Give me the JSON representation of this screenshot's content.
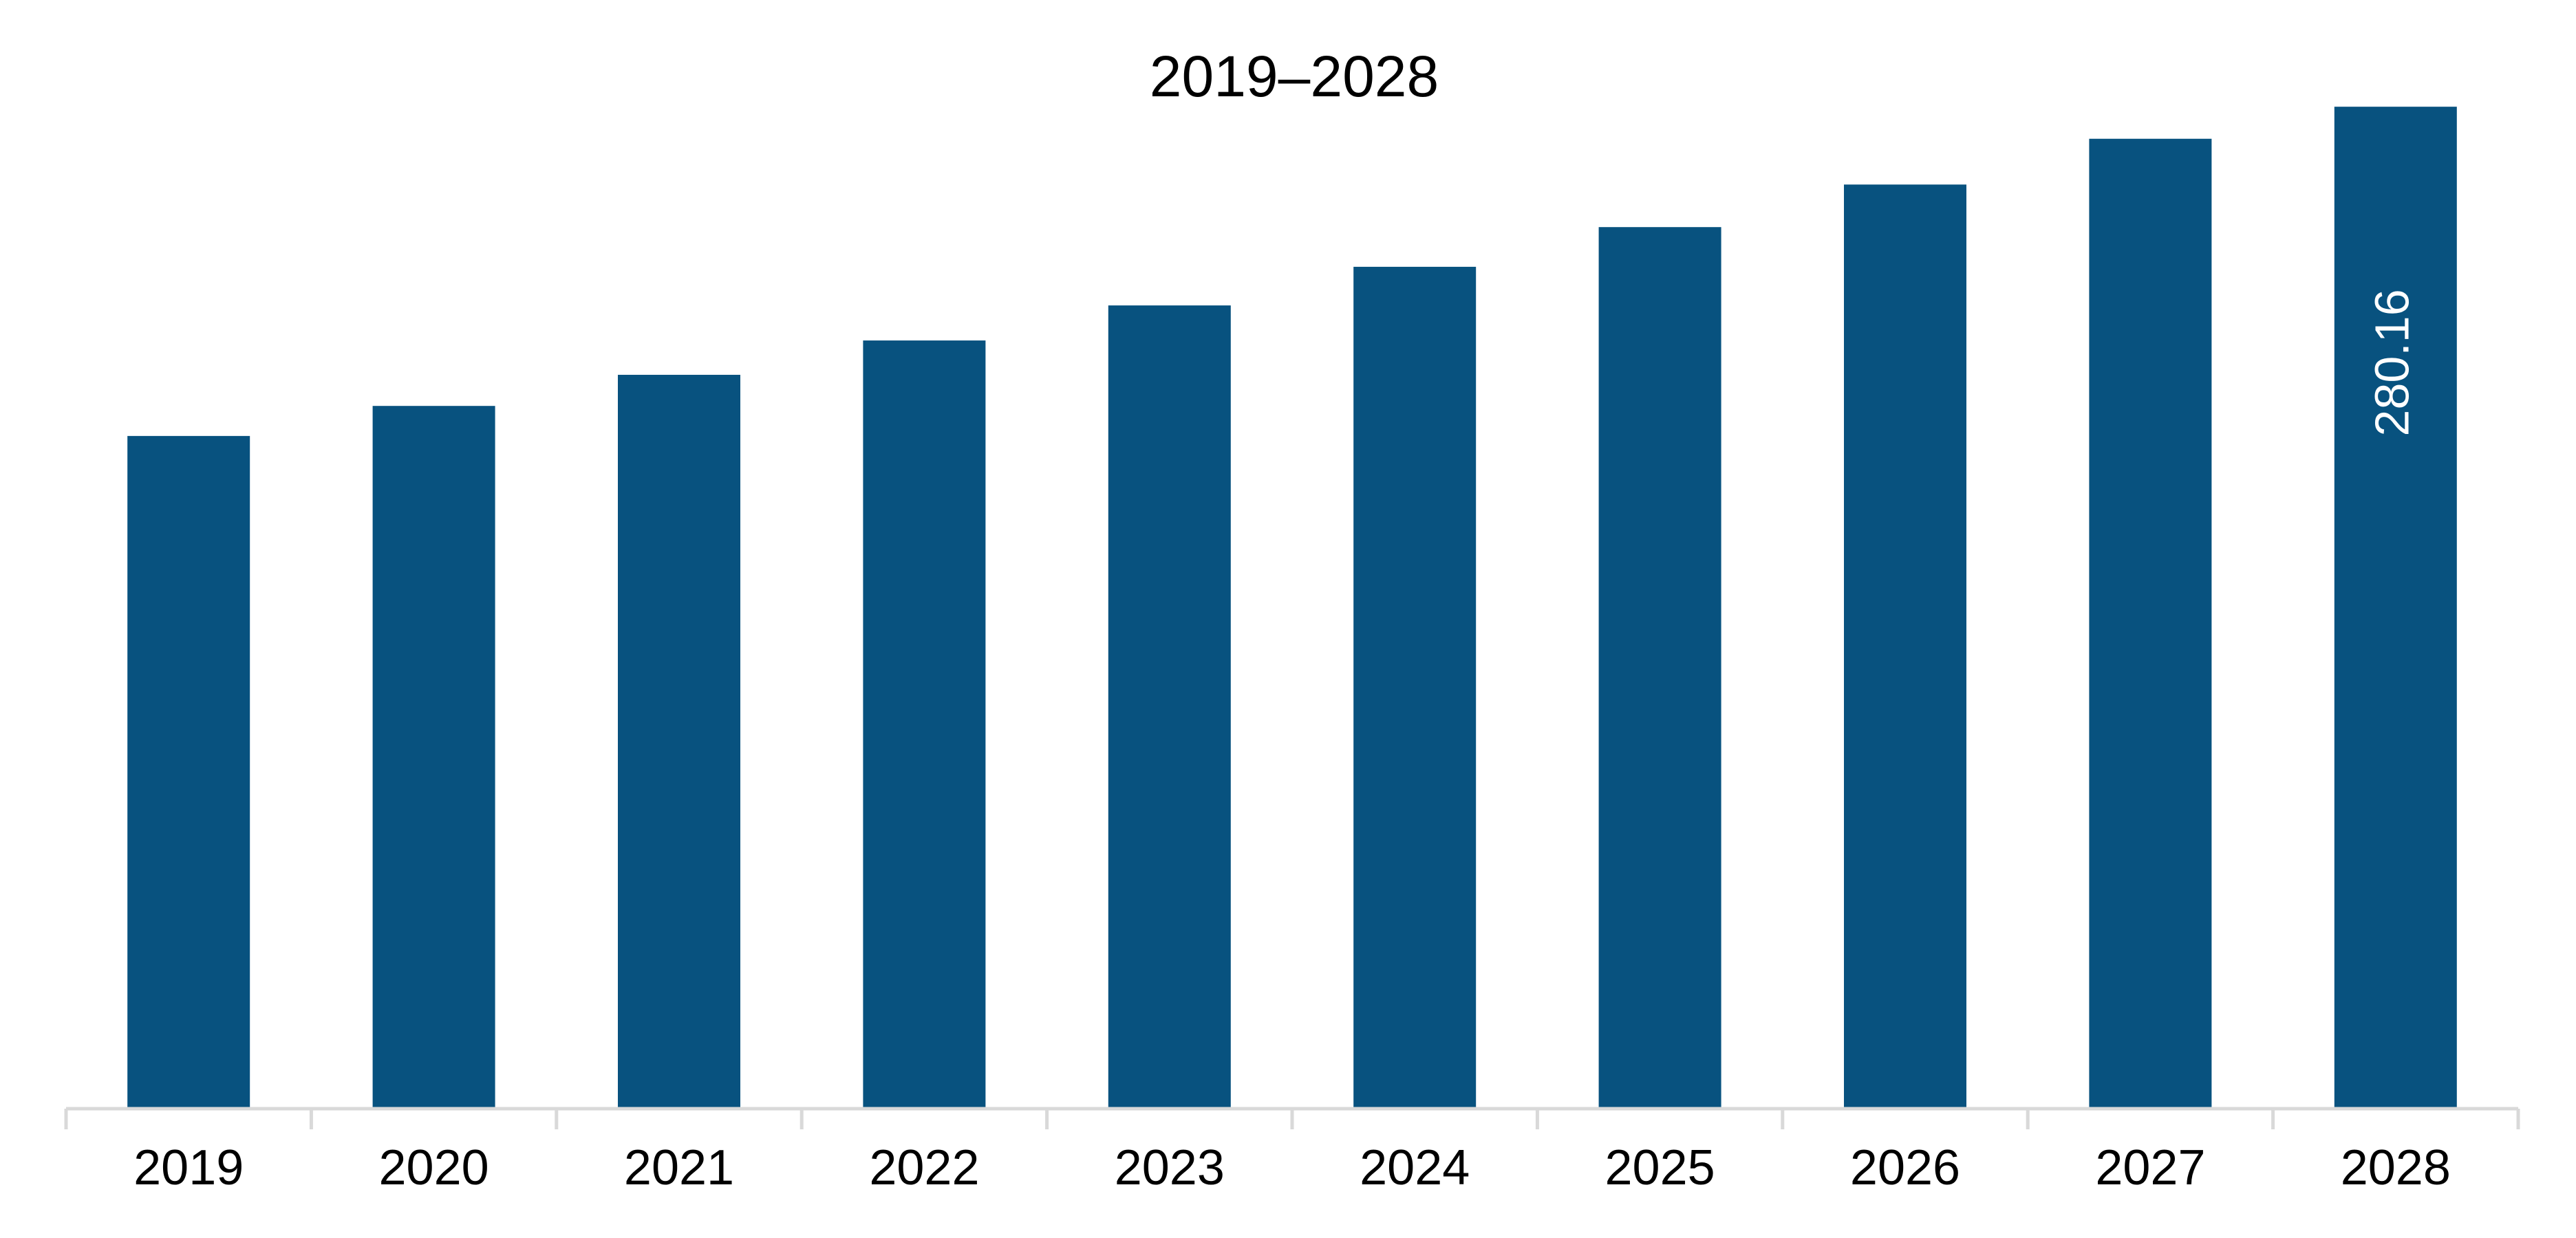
{
  "chart_data": {
    "type": "bar",
    "title": "2019–2028",
    "categories": [
      "2019",
      "2020",
      "2021",
      "2022",
      "2023",
      "2024",
      "2025",
      "2026",
      "2027",
      "2028"
    ],
    "values": [
      188.1,
      196.5,
      205.2,
      214.8,
      224.6,
      235.4,
      246.5,
      258.4,
      271.2,
      280.16
    ],
    "data_labels": {
      "2028": "280.16"
    },
    "ylim": [
      0,
      285
    ],
    "xlabel": "",
    "ylabel": "",
    "grid": false,
    "legend": "none",
    "colors": {
      "bar": "#08527f",
      "axis": "#d9d9d9",
      "text": "#000000",
      "data_label": "#ffffff"
    }
  }
}
